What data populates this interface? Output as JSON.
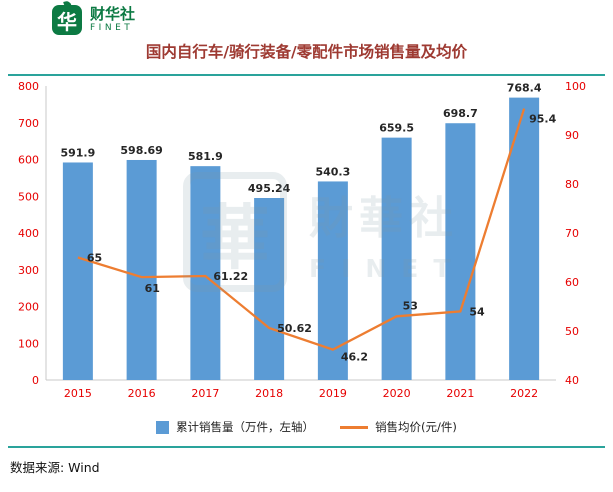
{
  "brand": {
    "glyph": "华",
    "name_cn": "财华社",
    "name_en": "FINET",
    "color": "#0c7a43"
  },
  "title": {
    "text": "国内自行车/骑行装备/零配件市场销售量及均价",
    "color": "#9e3a32"
  },
  "chart_data": {
    "type": "bar+line combo",
    "categories": [
      "2015",
      "2016",
      "2017",
      "2018",
      "2019",
      "2020",
      "2021",
      "2022"
    ],
    "series": [
      {
        "name": "累计销售量（万件，左轴）",
        "type": "bar",
        "axis": "left",
        "color": "#5b9bd5",
        "values": [
          591.9,
          598.69,
          581.9,
          495.24,
          540.3,
          659.5,
          698.7,
          768.4
        ]
      },
      {
        "name": "销售均价(元/件)",
        "type": "line",
        "axis": "right",
        "color": "#ed7d31",
        "values": [
          65,
          61,
          61.22,
          50.62,
          46.2,
          53,
          54,
          95.4
        ]
      }
    ],
    "left_axis": {
      "min": 0,
      "max": 800,
      "step": 100
    },
    "right_axis": {
      "min": 40,
      "max": 100,
      "step": 10
    },
    "grid": false,
    "legend_position": "bottom",
    "style": {
      "axis_label_color": "#e60000",
      "data_label_color": "#262626",
      "axis_line_color": "#c9c9c9"
    }
  },
  "watermark": {
    "glyph": "華",
    "cn": "財華社",
    "en": "FINET",
    "color": "#7e97a6"
  },
  "source": {
    "text": "数据来源: Wind"
  },
  "accent": {
    "divider_color": "#2aa39b"
  }
}
